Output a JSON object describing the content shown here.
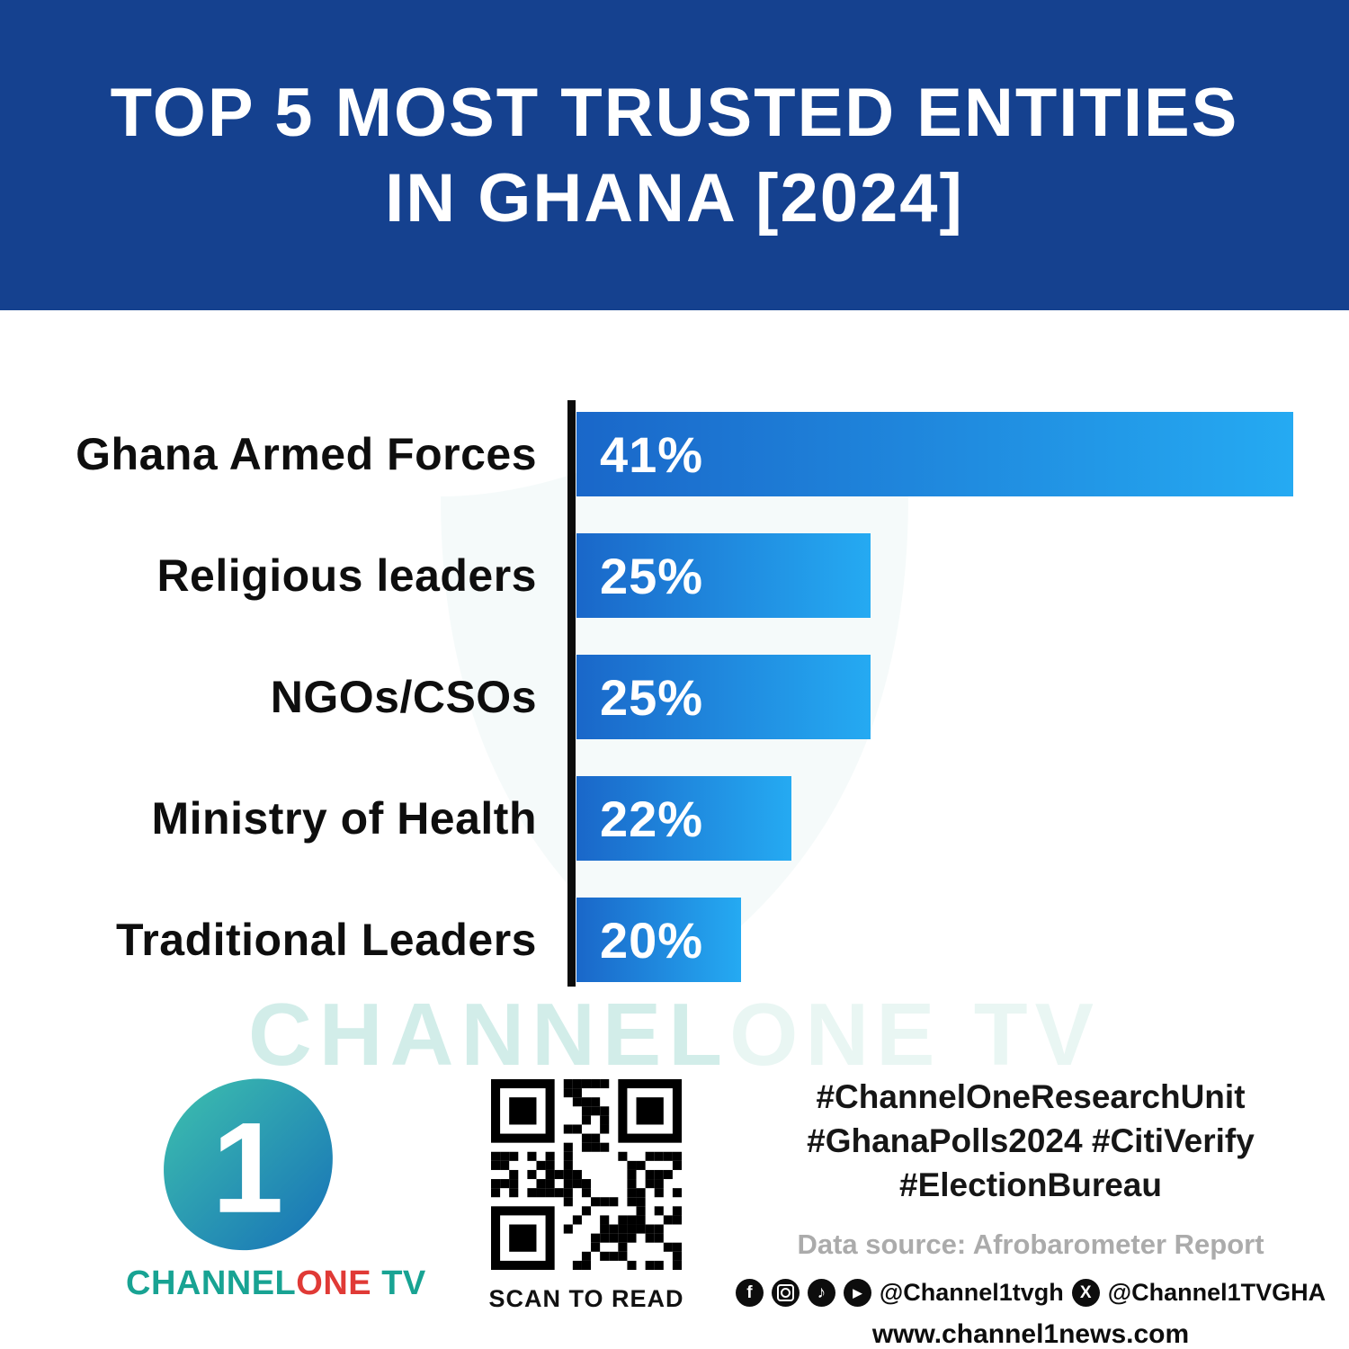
{
  "header": {
    "title_line1": "TOP 5 MOST TRUSTED ENTITIES",
    "title_line2": "IN GHANA [2024]",
    "background_color": "#15418f",
    "text_color": "#ffffff"
  },
  "chart_data": {
    "type": "bar",
    "orientation": "horizontal",
    "title": "Top 5 Most Trusted Entities in Ghana [2024]",
    "categories": [
      "Ghana Armed Forces",
      "Religious leaders",
      "NGOs/CSOs",
      "Ministry of Health",
      "Traditional Leaders"
    ],
    "values": [
      41,
      25,
      25,
      22,
      20
    ],
    "value_labels": [
      "41%",
      "25%",
      "25%",
      "22%",
      "20%"
    ],
    "unit": "%",
    "display_widths_pct": [
      100,
      41,
      41,
      30,
      23
    ],
    "bar_color_start": "#1a67c9",
    "bar_color_end": "#25aaf2",
    "axis_color": "#0c0c0c",
    "grid": false,
    "legend": false
  },
  "watermark": {
    "part1": "CHANNEL",
    "part2": "ONE TV",
    "color": "#d2ede9"
  },
  "footer": {
    "logo": {
      "digit": "1",
      "brand_part1": "CHANNEL",
      "brand_part2": "ONE",
      "brand_part3": " TV"
    },
    "qr": {
      "caption": "SCAN TO READ"
    },
    "hashtags": [
      "#ChannelOneResearchUnit",
      "#GhanaPolls2024 #CitiVerify",
      "#ElectionBureau"
    ],
    "data_source": "Data source: Afrobarometer Report",
    "social": {
      "icons": [
        "facebook-icon",
        "instagram-icon",
        "tiktok-icon",
        "youtube-icon",
        "x-icon"
      ],
      "facebook_glyph": "f",
      "tiktok_glyph": "♪",
      "youtube_glyph": "▶",
      "x_glyph": "X",
      "handle_main": "@Channel1tvgh",
      "handle_x": "@Channel1TVGHA"
    },
    "website": "www.channel1news.com"
  }
}
